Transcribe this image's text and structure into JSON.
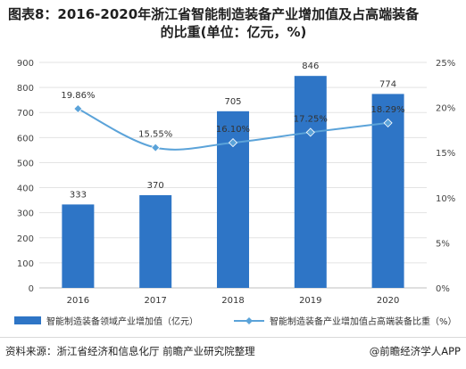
{
  "page": {
    "title_line1": "图表8：2016-2020年浙江省智能制造装备产业增加值及占高端装备",
    "title_line2": "的比重(单位：亿元，%)",
    "source": "资料来源：浙江省经济和信息化厅 前瞻产业研究院整理",
    "brand": "@前瞻经济学人APP"
  },
  "chart_data": {
    "type": "bar+line",
    "categories": [
      "2016",
      "2017",
      "2018",
      "2019",
      "2020"
    ],
    "series": [
      {
        "name": "智能制造装备领域产业增加值（亿元）",
        "type": "bar",
        "axis": "left",
        "color": "#2E75C6",
        "values": [
          333,
          370,
          705,
          846,
          774
        ],
        "labels": [
          "333",
          "370",
          "705",
          "846",
          "774"
        ]
      },
      {
        "name": "智能制造装备产业增加值占高端装备比重（%）",
        "type": "line",
        "axis": "right",
        "color": "#5BA3D9",
        "values": [
          19.86,
          15.55,
          16.1,
          17.25,
          18.29
        ],
        "labels": [
          "19.86%",
          "15.55%",
          "16.10%",
          "17.25%",
          "18.29%"
        ]
      }
    ],
    "y_left": {
      "ylim": [
        0,
        900
      ],
      "ticks": [
        "0",
        "100",
        "200",
        "300",
        "400",
        "500",
        "600",
        "700",
        "800",
        "900"
      ]
    },
    "y_right": {
      "ylim": [
        0,
        25
      ],
      "ticks": [
        "0%",
        "5%",
        "10%",
        "15%",
        "20%",
        "25%"
      ]
    },
    "grid": true,
    "legend_position": "bottom"
  }
}
